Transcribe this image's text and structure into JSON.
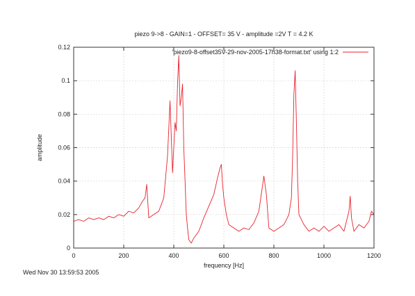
{
  "chart_data": {
    "type": "line",
    "title": "piezo 9->8 - GAIN=1 - OFFSET= 35 V - amplitude =2V T = 4.2 K",
    "xlabel": "frequency [Hz]",
    "ylabel": "amplitude",
    "xlim": [
      0,
      1200
    ],
    "ylim": [
      0,
      0.12
    ],
    "xticks": [
      0,
      200,
      400,
      600,
      800,
      1000,
      1200
    ],
    "yticks": [
      0,
      0.02,
      0.04,
      0.06,
      0.08,
      0.1,
      0.12
    ],
    "xtick_labels": [
      "0",
      "200",
      "400",
      "600",
      "800",
      "1000",
      "1200"
    ],
    "ytick_labels": [
      "0",
      "0.02",
      "0.04",
      "0.06",
      "0.08",
      "0.1",
      "0.12"
    ],
    "grid": true,
    "legend_position": "top-right",
    "series": [
      {
        "name": "'piezo9-8-offset35V-29-nov-2005-17h38-format.txt' using 1:2",
        "color": "#e8202a",
        "x": [
          0,
          20,
          40,
          60,
          80,
          100,
          120,
          140,
          160,
          180,
          200,
          220,
          240,
          260,
          275,
          285,
          292,
          300,
          320,
          340,
          360,
          375,
          385,
          395,
          400,
          405,
          410,
          415,
          420,
          425,
          430,
          435,
          440,
          445,
          450,
          455,
          460,
          470,
          480,
          500,
          520,
          540,
          560,
          575,
          585,
          590,
          595,
          600,
          610,
          620,
          640,
          660,
          680,
          700,
          720,
          740,
          760,
          770,
          775,
          780,
          800,
          820,
          840,
          860,
          870,
          875,
          880,
          885,
          890,
          895,
          900,
          920,
          940,
          960,
          980,
          1000,
          1020,
          1040,
          1060,
          1080,
          1100,
          1105,
          1110,
          1120,
          1140,
          1160,
          1180,
          1190,
          1200
        ],
        "y": [
          0.016,
          0.017,
          0.016,
          0.018,
          0.017,
          0.018,
          0.017,
          0.019,
          0.018,
          0.02,
          0.019,
          0.022,
          0.021,
          0.024,
          0.028,
          0.03,
          0.038,
          0.018,
          0.02,
          0.022,
          0.03,
          0.055,
          0.088,
          0.045,
          0.06,
          0.075,
          0.07,
          0.098,
          0.115,
          0.085,
          0.09,
          0.098,
          0.06,
          0.04,
          0.02,
          0.012,
          0.005,
          0.003,
          0.006,
          0.01,
          0.018,
          0.025,
          0.032,
          0.042,
          0.048,
          0.05,
          0.038,
          0.03,
          0.02,
          0.014,
          0.012,
          0.01,
          0.012,
          0.011,
          0.015,
          0.022,
          0.043,
          0.032,
          0.022,
          0.012,
          0.01,
          0.012,
          0.014,
          0.02,
          0.03,
          0.055,
          0.092,
          0.106,
          0.075,
          0.04,
          0.02,
          0.014,
          0.01,
          0.012,
          0.01,
          0.013,
          0.01,
          0.012,
          0.014,
          0.01,
          0.022,
          0.031,
          0.018,
          0.01,
          0.014,
          0.012,
          0.016,
          0.022,
          0.02
        ]
      }
    ]
  },
  "footer": {
    "timestamp": "Wed Nov 30 13:59:53 2005"
  }
}
